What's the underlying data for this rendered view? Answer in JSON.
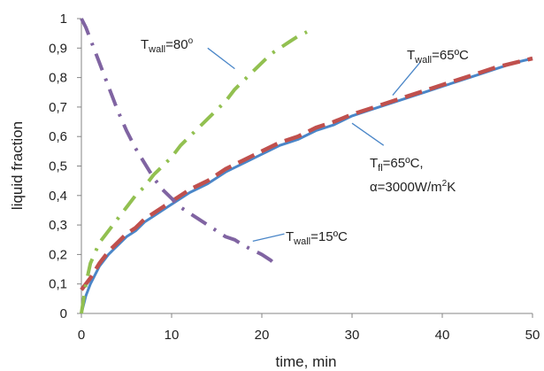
{
  "chart_data": {
    "type": "line",
    "xlabel": "time, min",
    "ylabel": "liquid  fraction",
    "xlim": [
      0,
      50
    ],
    "ylim": [
      0,
      1
    ],
    "x_ticks": [
      "0",
      "10",
      "20",
      "30",
      "40",
      "50"
    ],
    "y_ticks": [
      "0",
      "0,1",
      "0,2",
      "0,3",
      "0,4",
      "0,5",
      "0,6",
      "0,7",
      "0,8",
      "0,9",
      "1"
    ],
    "grid": false,
    "colors": {
      "wall80": "#92c050",
      "wall65": "#4a86c8",
      "fluid65": "#c0504d",
      "wall15": "#8064a2",
      "leader": "#4a86c8"
    },
    "series": [
      {
        "key": "wall80",
        "style": "dash-dot",
        "x": [
          0,
          0.5,
          1,
          2,
          3,
          4,
          5,
          6,
          7,
          8,
          9,
          10,
          11,
          12,
          13,
          14,
          15,
          16,
          17,
          18,
          19,
          20,
          21,
          22,
          23,
          24,
          25
        ],
        "y": [
          0,
          0.1,
          0.17,
          0.24,
          0.28,
          0.32,
          0.36,
          0.4,
          0.43,
          0.47,
          0.5,
          0.53,
          0.57,
          0.6,
          0.63,
          0.66,
          0.69,
          0.72,
          0.76,
          0.79,
          0.82,
          0.85,
          0.88,
          0.9,
          0.92,
          0.94,
          0.955
        ]
      },
      {
        "key": "wall65",
        "style": "solid",
        "x": [
          0,
          0.5,
          1,
          2,
          3,
          4,
          5,
          6,
          7,
          8,
          9,
          10,
          12,
          14,
          16,
          18,
          20,
          22,
          24,
          26,
          28,
          30,
          32,
          34,
          36,
          38,
          40,
          42,
          44,
          46,
          48,
          50
        ],
        "y": [
          0,
          0.06,
          0.1,
          0.16,
          0.2,
          0.23,
          0.26,
          0.28,
          0.31,
          0.33,
          0.35,
          0.37,
          0.41,
          0.44,
          0.48,
          0.51,
          0.54,
          0.57,
          0.59,
          0.62,
          0.64,
          0.67,
          0.69,
          0.71,
          0.73,
          0.75,
          0.77,
          0.79,
          0.81,
          0.83,
          0.85,
          0.865
        ]
      },
      {
        "key": "fluid65",
        "style": "dashed",
        "x": [
          0,
          0.5,
          1,
          2,
          3,
          4,
          5,
          6,
          7,
          8,
          9,
          10,
          12,
          14,
          16,
          18,
          20,
          22,
          24,
          26,
          28,
          30,
          32,
          34,
          36,
          38,
          40,
          42,
          44,
          46,
          48,
          50
        ],
        "y": [
          0.08,
          0.1,
          0.12,
          0.17,
          0.21,
          0.24,
          0.27,
          0.29,
          0.32,
          0.34,
          0.36,
          0.38,
          0.42,
          0.45,
          0.49,
          0.52,
          0.55,
          0.58,
          0.6,
          0.63,
          0.65,
          0.675,
          0.695,
          0.715,
          0.735,
          0.755,
          0.775,
          0.795,
          0.815,
          0.835,
          0.85,
          0.865
        ]
      },
      {
        "key": "wall15",
        "style": "dash-dot",
        "x": [
          0,
          0.5,
          1,
          1.5,
          2,
          3,
          4,
          5,
          6,
          7,
          8,
          9,
          10,
          11,
          12,
          13,
          14,
          15,
          16,
          17,
          18,
          19,
          20,
          21,
          21.5
        ],
        "y": [
          1,
          0.97,
          0.93,
          0.89,
          0.85,
          0.77,
          0.69,
          0.62,
          0.56,
          0.51,
          0.46,
          0.42,
          0.39,
          0.36,
          0.34,
          0.32,
          0.3,
          0.28,
          0.26,
          0.25,
          0.23,
          0.215,
          0.2,
          0.18,
          0.165
        ]
      }
    ],
    "annotations": {
      "wall80": {
        "main": "T",
        "sub": "wall",
        "rest": "=80",
        "sup": "o"
      },
      "wall65": {
        "main": "T",
        "sub": "wall",
        "rest": "=65ºC"
      },
      "fluid": {
        "main": "T",
        "sub": "fl",
        "rest": "=65ºC,"
      },
      "alpha": {
        "pre": "α=3000W/m",
        "sup": "2",
        "post": "K"
      },
      "wall15": {
        "main": "T",
        "sub": "wall",
        "rest": "=15ºC"
      }
    }
  }
}
